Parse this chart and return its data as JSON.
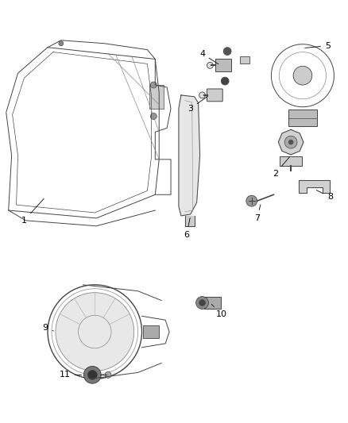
{
  "background_color": "#ffffff",
  "figsize": [
    4.38,
    5.33
  ],
  "dpi": 100,
  "line_color": "#444444",
  "light_gray": "#aaaaaa",
  "mid_gray": "#888888",
  "dark_gray": "#333333"
}
